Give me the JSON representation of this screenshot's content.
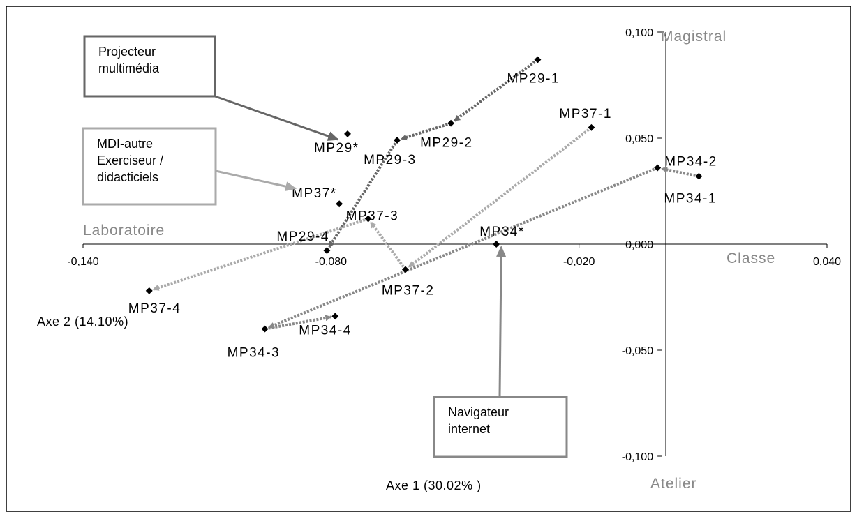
{
  "chart_data": {
    "type": "scatter",
    "xlim": [
      -0.14,
      0.04
    ],
    "ylim": [
      -0.1,
      0.1
    ],
    "x_ticks": [
      "-0,140",
      "-0,080",
      "-0,020",
      "0,040"
    ],
    "y_ticks": [
      "0,100",
      "0,050",
      "0,000",
      "-0,050",
      "-0,100"
    ],
    "x_tick_values": [
      -0.14,
      -0.08,
      -0.02,
      0.04
    ],
    "y_tick_values": [
      0.1,
      0.05,
      0.0,
      -0.05,
      -0.1
    ],
    "x_title": "Axe 1 (30.02% )",
    "y_title": "Axe 2 (14.10%)",
    "poles": {
      "top": "Magistral",
      "bottom": "Atelier",
      "left": "Laboratoire",
      "right": "Classe"
    },
    "points": [
      {
        "label": "MP29*",
        "x": -0.076,
        "y": 0.052
      },
      {
        "label": "MP37*",
        "x": -0.078,
        "y": 0.019
      },
      {
        "label": "MP34*",
        "x": -0.04,
        "y": 0.0
      },
      {
        "label": "MP29-1",
        "x": -0.03,
        "y": 0.087
      },
      {
        "label": "MP29-2",
        "x": -0.051,
        "y": 0.057
      },
      {
        "label": "MP29-3",
        "x": -0.064,
        "y": 0.049
      },
      {
        "label": "MP29-4",
        "x": -0.081,
        "y": -0.003
      },
      {
        "label": "MP37-1",
        "x": -0.017,
        "y": 0.055
      },
      {
        "label": "MP37-2",
        "x": -0.062,
        "y": -0.012
      },
      {
        "label": "MP37-3",
        "x": -0.071,
        "y": 0.012
      },
      {
        "label": "MP37-4",
        "x": -0.124,
        "y": -0.022
      },
      {
        "label": "MP34-1",
        "x": 0.009,
        "y": 0.032
      },
      {
        "label": "MP34-2",
        "x": -0.001,
        "y": 0.036
      },
      {
        "label": "MP34-3",
        "x": -0.096,
        "y": -0.04
      },
      {
        "label": "MP34-4",
        "x": -0.079,
        "y": -0.034
      }
    ],
    "trajectories": [
      {
        "from": "MP29-1",
        "to": "MP29-2",
        "color": "#666666"
      },
      {
        "from": "MP29-2",
        "to": "MP29-3",
        "color": "#666666"
      },
      {
        "from": "MP29-3",
        "to": "MP29-4",
        "color": "#666666"
      },
      {
        "from": "MP37-1",
        "to": "MP37-2",
        "color": "#aaaaaa"
      },
      {
        "from": "MP37-2",
        "to": "MP37-3",
        "color": "#aaaaaa"
      },
      {
        "from": "MP37-3",
        "to": "MP37-4",
        "color": "#aaaaaa"
      },
      {
        "from": "MP34-1",
        "to": "MP34-2",
        "color": "#888888"
      },
      {
        "from": "MP34-2",
        "to": "MP34-3",
        "color": "#888888"
      },
      {
        "from": "MP34-3",
        "to": "MP34-4",
        "color": "#888888"
      }
    ],
    "annotations": [
      {
        "lines": [
          "Projecteur",
          "multimédia"
        ],
        "target": "MP29*",
        "color": "#666666"
      },
      {
        "lines": [
          "MDI-autre",
          "Exerciseur /",
          "didacticiels"
        ],
        "target": "MP37*",
        "color": "#aaaaaa"
      },
      {
        "lines": [
          "Navigateur",
          "internet"
        ],
        "target": "MP34*",
        "color": "#888888"
      }
    ]
  }
}
